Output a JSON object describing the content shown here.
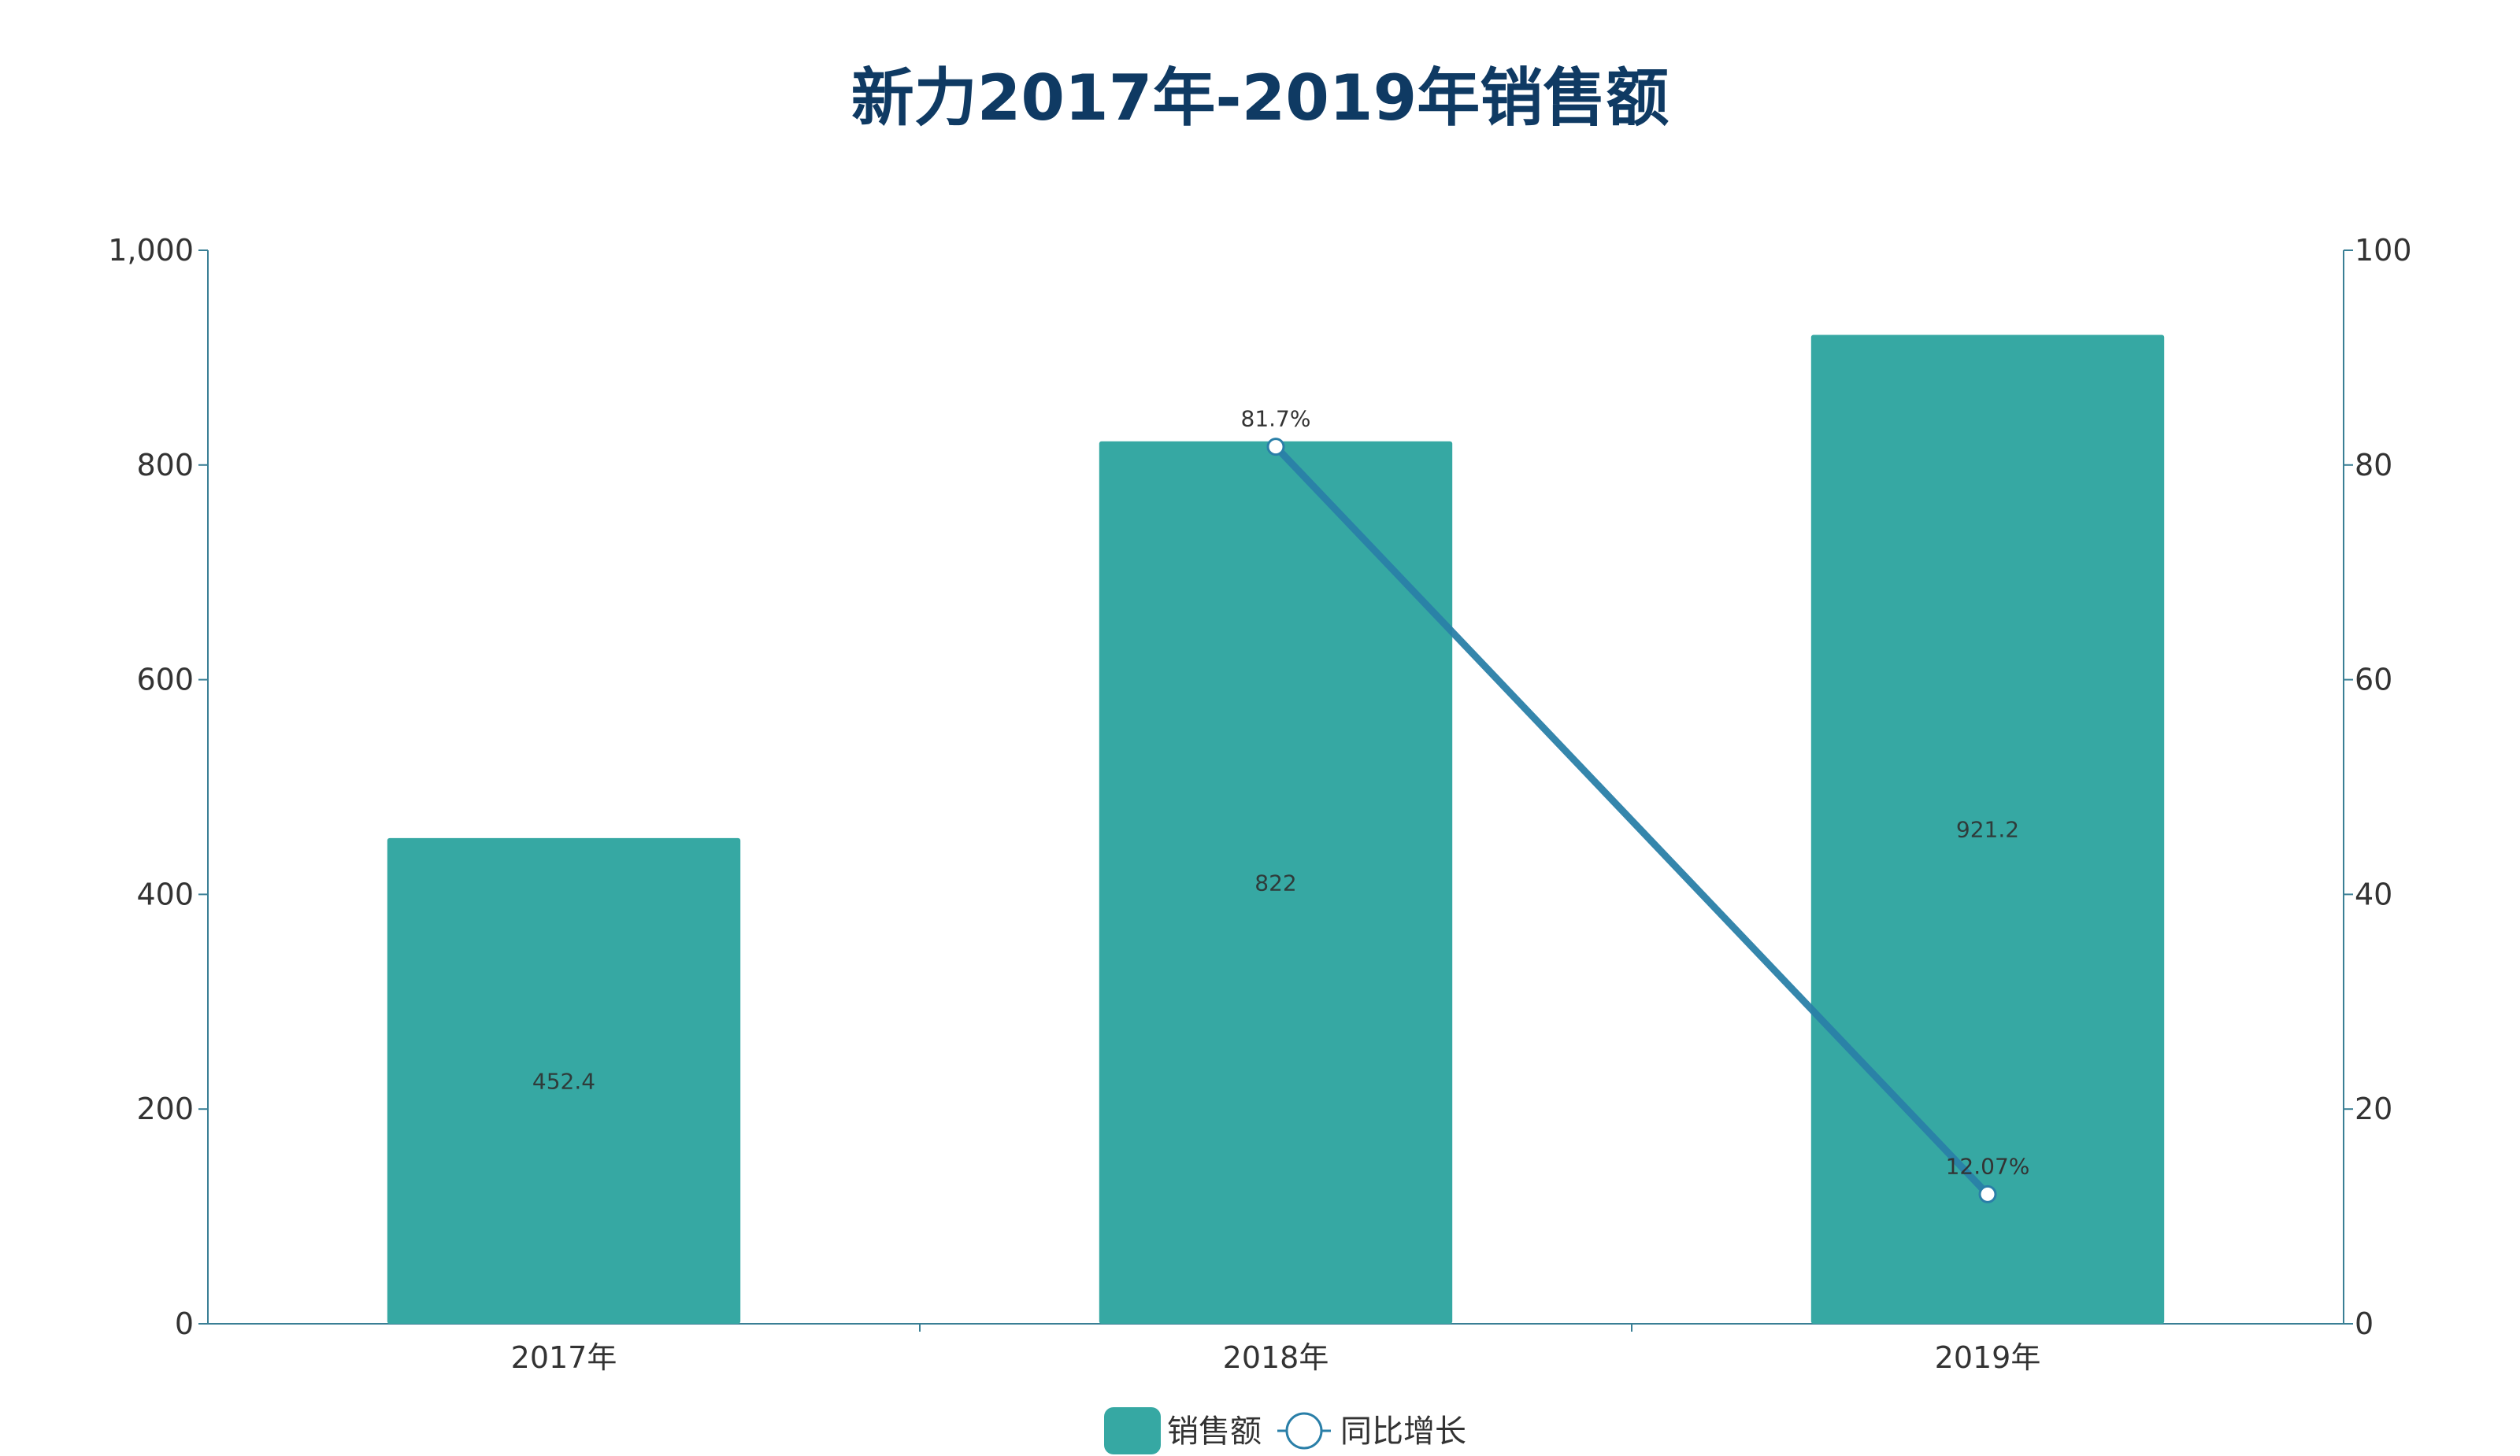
{
  "chart_data": {
    "type": "bar",
    "title": "新力2017年-2019年销售额",
    "categories": [
      "2017年",
      "2018年",
      "2019年"
    ],
    "series": [
      {
        "name": "销售额",
        "type": "bar",
        "axis": "left",
        "values": [
          452.4,
          822,
          921.2
        ],
        "labels": [
          "452.4",
          "822",
          "921.2"
        ],
        "color": "#36a8a3"
      },
      {
        "name": "同比增长",
        "type": "line",
        "axis": "right",
        "values": [
          null,
          81.7,
          12.07
        ],
        "labels": [
          "",
          "81.7%",
          "12.07%"
        ],
        "color": "#2a7fa8"
      }
    ],
    "ylim": [
      0,
      1000
    ],
    "y_ticks": [
      "0",
      "200",
      "400",
      "600",
      "800",
      "1,000"
    ],
    "y2lim": [
      0,
      100
    ],
    "y2_ticks": [
      "0",
      "20",
      "40",
      "60",
      "80",
      "100"
    ],
    "axis_color": "#3a7f95",
    "grid": false,
    "legend_position": "bottom-center"
  }
}
